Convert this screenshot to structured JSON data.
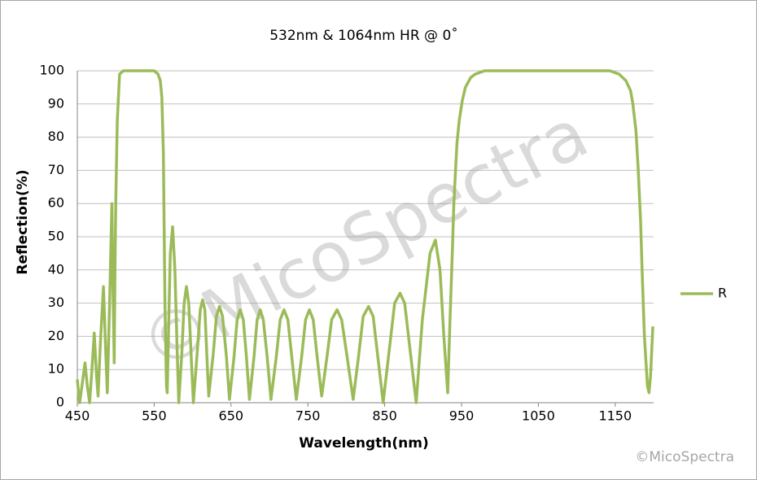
{
  "chart_data": {
    "type": "line",
    "title": "532nm & 1064nm HR @ 0˚",
    "x_label": "Wavelength(nm)",
    "y_label": "Reflection(%)",
    "watermark": "©MicoSpectra",
    "credit": "©MicoSpectra",
    "x": [
      450,
      452,
      453,
      456,
      460,
      463,
      466,
      469,
      472,
      475,
      477,
      480,
      484,
      487,
      489,
      492,
      495,
      496,
      498,
      499,
      500,
      502,
      505,
      510,
      520,
      530,
      540,
      550,
      555,
      558,
      560,
      562,
      564,
      566,
      567,
      569,
      571,
      574,
      577,
      580,
      582,
      586,
      589,
      592,
      595,
      598,
      601,
      606,
      610,
      613,
      616,
      619,
      621,
      627,
      631,
      635,
      639,
      644,
      648,
      654,
      658,
      662,
      666,
      670,
      674,
      680,
      684,
      688,
      692,
      697,
      702,
      709,
      714,
      719,
      724,
      729,
      735,
      742,
      747,
      752,
      757,
      762,
      768,
      775,
      781,
      788,
      794,
      801,
      809,
      816,
      822,
      829,
      835,
      841,
      848,
      856,
      863,
      870,
      876,
      883,
      891,
      899,
      909,
      916,
      922,
      927,
      932,
      935,
      938,
      940,
      944,
      947,
      951,
      955,
      962,
      968,
      980,
      1000,
      1050,
      1100,
      1143,
      1155,
      1164,
      1170,
      1173,
      1177,
      1180,
      1183,
      1185,
      1188,
      1192,
      1194,
      1196,
      1199
    ],
    "series": [
      {
        "name": "R",
        "color": "#9bbb59",
        "values": [
          7,
          2,
          0,
          5,
          12,
          5,
          0,
          10,
          21,
          8,
          2,
          18,
          35,
          15,
          3,
          30,
          60,
          40,
          12,
          40,
          60,
          85,
          99,
          100,
          100,
          100,
          100,
          100,
          99,
          97,
          92,
          75,
          30,
          5,
          3,
          25,
          45,
          53,
          40,
          15,
          0,
          15,
          30,
          35,
          30,
          15,
          0,
          15,
          28,
          31,
          28,
          12,
          2,
          15,
          26,
          29,
          26,
          14,
          1,
          14,
          25,
          28,
          25,
          14,
          1,
          14,
          25,
          28,
          25,
          14,
          1,
          14,
          25,
          28,
          25,
          14,
          1,
          14,
          25,
          28,
          25,
          14,
          2,
          14,
          25,
          28,
          25,
          14,
          1,
          14,
          26,
          29,
          26,
          14,
          0,
          16,
          30,
          33,
          30,
          16,
          0,
          25,
          45,
          49,
          40,
          20,
          3,
          25,
          45,
          60,
          78,
          85,
          91,
          95,
          98,
          99,
          100,
          100,
          100,
          100,
          100,
          99,
          97,
          94,
          90,
          82,
          70,
          55,
          40,
          20,
          5,
          3,
          8,
          23
        ]
      }
    ],
    "xlim": [
      450,
      1200
    ],
    "xticks": [
      450,
      550,
      650,
      750,
      850,
      950,
      1050,
      1150
    ],
    "ylim": [
      0,
      100
    ],
    "yticks": [
      0,
      10,
      20,
      30,
      40,
      50,
      60,
      70,
      80,
      90,
      100
    ],
    "grid": true,
    "legend": "right"
  }
}
